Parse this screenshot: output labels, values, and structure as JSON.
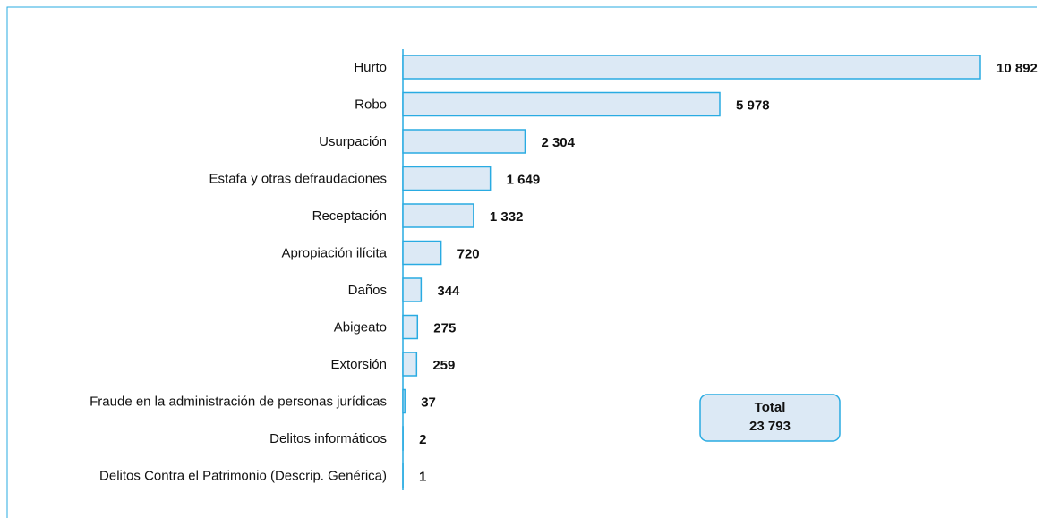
{
  "chart_data": {
    "type": "hbar",
    "categories": [
      "Hurto",
      "Robo",
      "Usurpación",
      "Estafa y otras defraudaciones",
      "Receptación",
      "Apropiación ilícita",
      "Daños",
      "Abigeato",
      "Extorsión",
      "Fraude en la administración de personas jurídicas",
      "Delitos informáticos",
      "Delitos Contra el Patrimonio (Descrip. Genérica)"
    ],
    "values": [
      10892,
      5978,
      2304,
      1649,
      1332,
      720,
      344,
      275,
      259,
      37,
      2,
      1
    ],
    "value_labels": [
      "10 892",
      "5 978",
      "2 304",
      "1 649",
      "1 332",
      "720",
      "344",
      "275",
      "259",
      "37",
      "2",
      "1"
    ],
    "color": "#dce9f5",
    "edge_color": "#29abe2",
    "annotation": {
      "label": "Total",
      "value": "23 793"
    }
  }
}
